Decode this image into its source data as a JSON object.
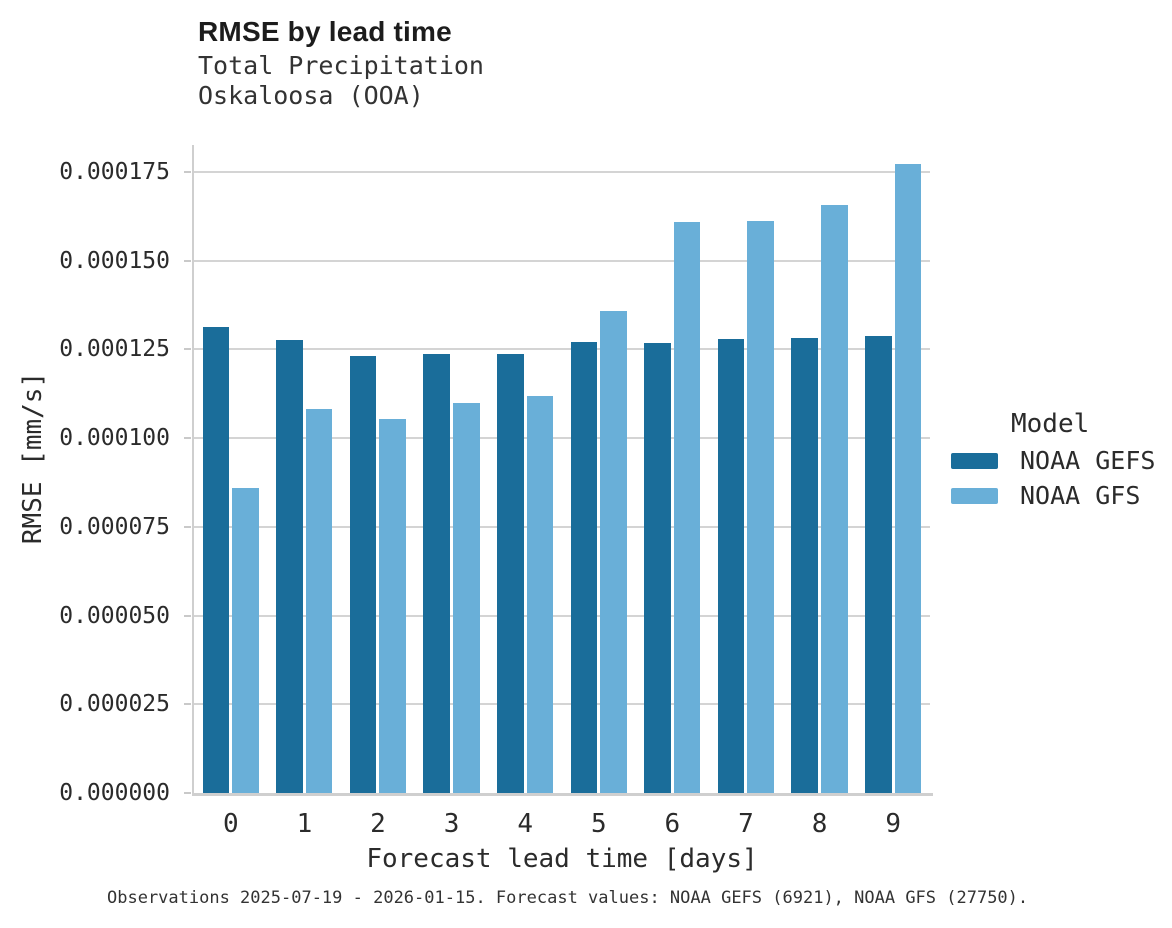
{
  "header": {
    "title": "RMSE by lead time",
    "subtitle_line1": "Total Precipitation",
    "subtitle_line2": "Oskaloosa (OOA)"
  },
  "footer": {
    "caption": "Observations 2025-07-19 - 2026-01-15. Forecast values: NOAA GEFS (6921), NOAA GFS (27750)."
  },
  "legend": {
    "title": "Model"
  },
  "colors": {
    "gefs_dark_blue": "#1a6d9a",
    "gfs_light_blue": "#69afd8",
    "gridline_gray": "#d4d4d4",
    "spine_gray": "#cfcfcf",
    "text_dark": "#2b2b2b"
  },
  "chart_data": {
    "type": "bar",
    "title": "RMSE by lead time",
    "subtitle": [
      "Total Precipitation",
      "Oskaloosa (OOA)"
    ],
    "xlabel": "Forecast lead time [days]",
    "ylabel": "RMSE [mm/s]",
    "categories": [
      "0",
      "1",
      "2",
      "3",
      "4",
      "5",
      "6",
      "7",
      "8",
      "9"
    ],
    "series": [
      {
        "name": "NOAA GEFS",
        "color": "#1a6d9a",
        "values": [
          0.0001314,
          0.0001277,
          0.0001232,
          0.0001236,
          0.0001236,
          0.0001272,
          0.0001267,
          0.000128,
          0.0001281,
          0.0001288
        ]
      },
      {
        "name": "NOAA GFS",
        "color": "#69afd8",
        "values": [
          8.6e-05,
          0.0001082,
          0.0001054,
          0.0001098,
          0.0001119,
          0.0001358,
          0.0001609,
          0.0001613,
          0.0001658,
          0.0001773
        ]
      }
    ],
    "ylim": [
      0.0,
      0.0001825
    ],
    "yticks": [
      0.0,
      2.5e-05,
      5e-05,
      7.5e-05,
      0.0001,
      0.000125,
      0.00015,
      0.000175
    ],
    "ytick_labels": [
      "0.000000",
      "0.000025",
      "0.000050",
      "0.000075",
      "0.000100",
      "0.000125",
      "0.000150",
      "0.000175"
    ],
    "grid": "horizontal",
    "legend_position": "right",
    "legend_title": "Model"
  }
}
